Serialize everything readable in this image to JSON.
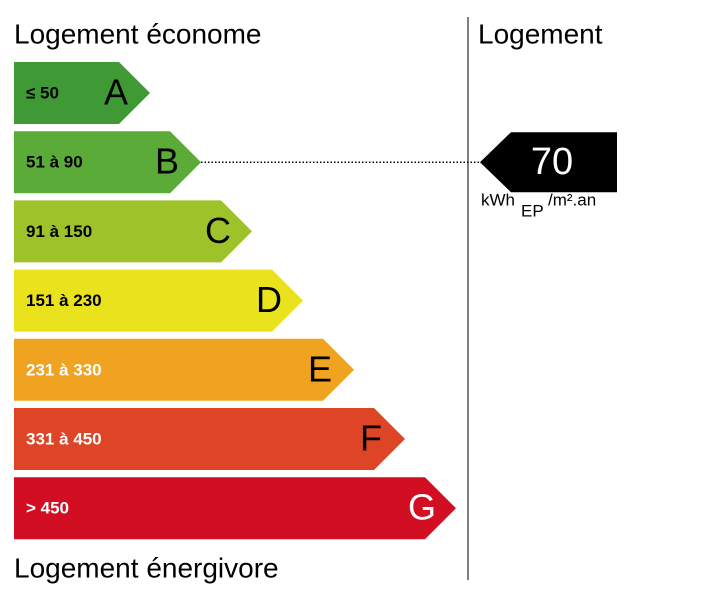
{
  "header": {
    "left_title": "Logement économe",
    "right_title": "Logement"
  },
  "footer": {
    "left_title": "Logement énergivore"
  },
  "classes": [
    {
      "range": "≤ 50",
      "letter": "A",
      "color": "#3f9a35"
    },
    {
      "range": "51 à 90",
      "letter": "B",
      "color": "#5aab37"
    },
    {
      "range": "91 à 150",
      "letter": "C",
      "color": "#9dc22a"
    },
    {
      "range": "151 à 230",
      "letter": "D",
      "color": "#ebe21e"
    },
    {
      "range": "231 à 330",
      "letter": "E",
      "color": "#f0a321"
    },
    {
      "range": "331 à 450",
      "letter": "F",
      "color": "#de4527"
    },
    {
      "range": "> 450",
      "letter": "G",
      "color": "#d20f22"
    }
  ],
  "marker": {
    "value": 70,
    "unit": "kWh",
    "unit_subscript": "EP",
    "unit_suffix": "/m².an"
  }
}
